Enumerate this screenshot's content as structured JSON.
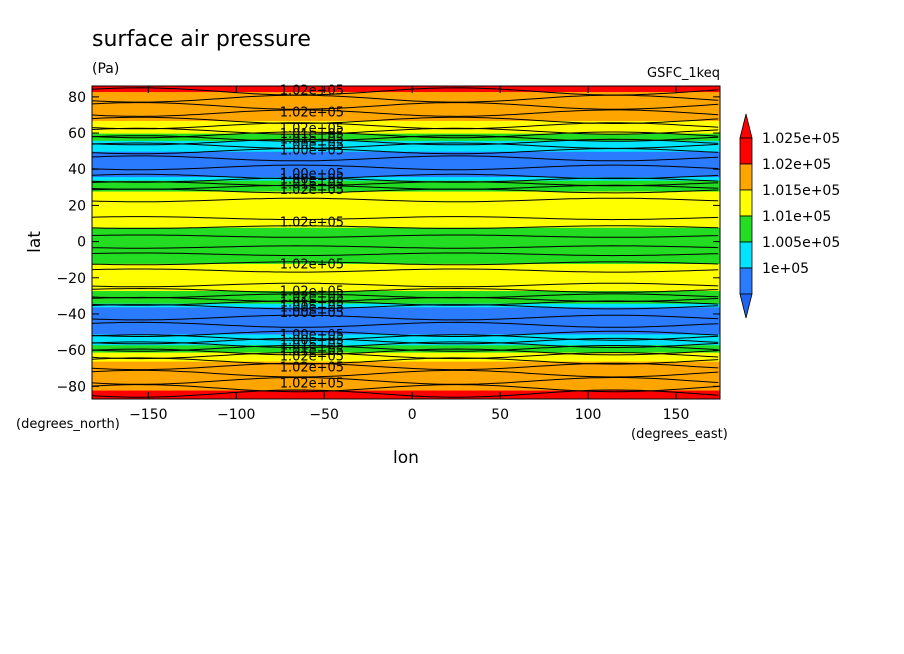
{
  "title": "surface air pressure",
  "units": "(Pa)",
  "dataset": "GSFC_1keq",
  "chart_data": {
    "type": "heatmap",
    "xlabel": "lon",
    "ylabel": "lat",
    "x_units": "(degrees_east)",
    "y_units": "(degrees_north)",
    "xlim": [
      -182,
      175
    ],
    "ylim": [
      -87,
      86
    ],
    "x_ticks": [
      -150,
      -100,
      -50,
      0,
      50,
      100,
      150
    ],
    "x_tick_labels": [
      "−150",
      "−100",
      "−50",
      "0",
      "50",
      "100",
      "150"
    ],
    "y_ticks": [
      -80,
      -60,
      -40,
      -20,
      0,
      20,
      40,
      60,
      80
    ],
    "y_tick_labels": [
      "−80",
      "−60",
      "−40",
      "−20",
      "0",
      "20",
      "40",
      "60",
      "80"
    ],
    "levels": [
      100000,
      100500,
      101000,
      101500,
      102000,
      102500
    ],
    "colorbar": {
      "labels": [
        "1e+05",
        "1.005e+05",
        "1.01e+05",
        "1.015e+05",
        "1.02e+05",
        "1.025e+05"
      ],
      "colors": [
        "#2b7bff",
        "#00e5ff",
        "#22dd22",
        "#ffff00",
        "#ffa500",
        "#ff0000"
      ],
      "under_color": "#1e64f0",
      "over_color": "#ff0000"
    },
    "bands": [
      {
        "lat": [
          -87,
          -82
        ],
        "value": 102700,
        "color": "#ff0000"
      },
      {
        "lat": [
          -82,
          -66
        ],
        "value": 102200,
        "color": "#ffa500"
      },
      {
        "lat": [
          -66,
          -61
        ],
        "value": 101700,
        "color": "#ffff00"
      },
      {
        "lat": [
          -61,
          -57
        ],
        "value": 101200,
        "color": "#22dd22"
      },
      {
        "lat": [
          -57,
          -51
        ],
        "value": 100700,
        "color": "#00e5ff"
      },
      {
        "lat": [
          -51,
          -36
        ],
        "value": 100200,
        "color": "#2b7bff"
      },
      {
        "lat": [
          -36,
          -34
        ],
        "value": 100700,
        "color": "#00e5ff"
      },
      {
        "lat": [
          -34,
          -27
        ],
        "value": 101200,
        "color": "#22dd22"
      },
      {
        "lat": [
          -27,
          -12
        ],
        "value": 101700,
        "color": "#ffff00"
      },
      {
        "lat": [
          -12,
          8
        ],
        "value": 101200,
        "color": "#22dd22"
      },
      {
        "lat": [
          8,
          28
        ],
        "value": 101700,
        "color": "#ffff00"
      },
      {
        "lat": [
          28,
          34
        ],
        "value": 101200,
        "color": "#22dd22"
      },
      {
        "lat": [
          34,
          36
        ],
        "value": 100700,
        "color": "#00e5ff"
      },
      {
        "lat": [
          36,
          50
        ],
        "value": 100200,
        "color": "#2b7bff"
      },
      {
        "lat": [
          50,
          56
        ],
        "value": 100700,
        "color": "#00e5ff"
      },
      {
        "lat": [
          56,
          60
        ],
        "value": 101200,
        "color": "#22dd22"
      },
      {
        "lat": [
          60,
          67
        ],
        "value": 101700,
        "color": "#ffff00"
      },
      {
        "lat": [
          67,
          83
        ],
        "value": 102200,
        "color": "#ffa500"
      },
      {
        "lat": [
          83,
          86
        ],
        "value": 102700,
        "color": "#ff0000"
      }
    ],
    "contour_lats": [
      -84,
      -81,
      -77,
      -73,
      -69,
      -66,
      -63,
      -61,
      -59,
      -57,
      -55,
      -53,
      -51,
      -46,
      -42,
      -36,
      -34,
      -32,
      -30,
      -27,
      -24,
      -16,
      -12,
      -7,
      -3,
      3,
      8,
      13,
      23,
      28,
      30,
      32,
      34,
      36,
      41,
      46,
      50,
      53,
      55,
      57,
      59,
      61,
      64,
      67,
      71,
      75,
      79,
      83
    ],
    "contour_labels": [
      {
        "lon": -57,
        "lat": 84,
        "text": "1.02e+05"
      },
      {
        "lon": -57,
        "lat": 72,
        "text": "1.02e+05"
      },
      {
        "lon": -57,
        "lat": 63,
        "text": "1.02e+05"
      },
      {
        "lon": -57,
        "lat": 60,
        "text": "1.01e+05"
      },
      {
        "lon": -57,
        "lat": 57,
        "text": "1.01e+05"
      },
      {
        "lon": -57,
        "lat": 54,
        "text": "1.00e+05"
      },
      {
        "lon": -57,
        "lat": 51,
        "text": "1.00e+05"
      },
      {
        "lon": -57,
        "lat": 38,
        "text": "1.00e+05"
      },
      {
        "lon": -57,
        "lat": 35,
        "text": "1.00e+05"
      },
      {
        "lon": -57,
        "lat": 32,
        "text": "1.01e+05"
      },
      {
        "lon": -57,
        "lat": 29,
        "text": "1.02e+05"
      },
      {
        "lon": -57,
        "lat": 11,
        "text": "1.02e+05"
      },
      {
        "lon": -57,
        "lat": -12,
        "text": "1.02e+05"
      },
      {
        "lon": -57,
        "lat": -27,
        "text": "1.02e+05"
      },
      {
        "lon": -57,
        "lat": -30,
        "text": "1.02e+05"
      },
      {
        "lon": -57,
        "lat": -33,
        "text": "1.01e+05"
      },
      {
        "lon": -57,
        "lat": -36,
        "text": "1.00e+05"
      },
      {
        "lon": -57,
        "lat": -39,
        "text": "1.00e+05"
      },
      {
        "lon": -57,
        "lat": -51,
        "text": "1.00e+05"
      },
      {
        "lon": -57,
        "lat": -54,
        "text": "1.00e+05"
      },
      {
        "lon": -57,
        "lat": -57,
        "text": "1.01e+05"
      },
      {
        "lon": -57,
        "lat": -60,
        "text": "1.01e+05"
      },
      {
        "lon": -57,
        "lat": -63,
        "text": "1.02e+05"
      },
      {
        "lon": -57,
        "lat": -69,
        "text": "1.02e+05"
      },
      {
        "lon": -57,
        "lat": -78,
        "text": "1.02e+05"
      }
    ]
  }
}
